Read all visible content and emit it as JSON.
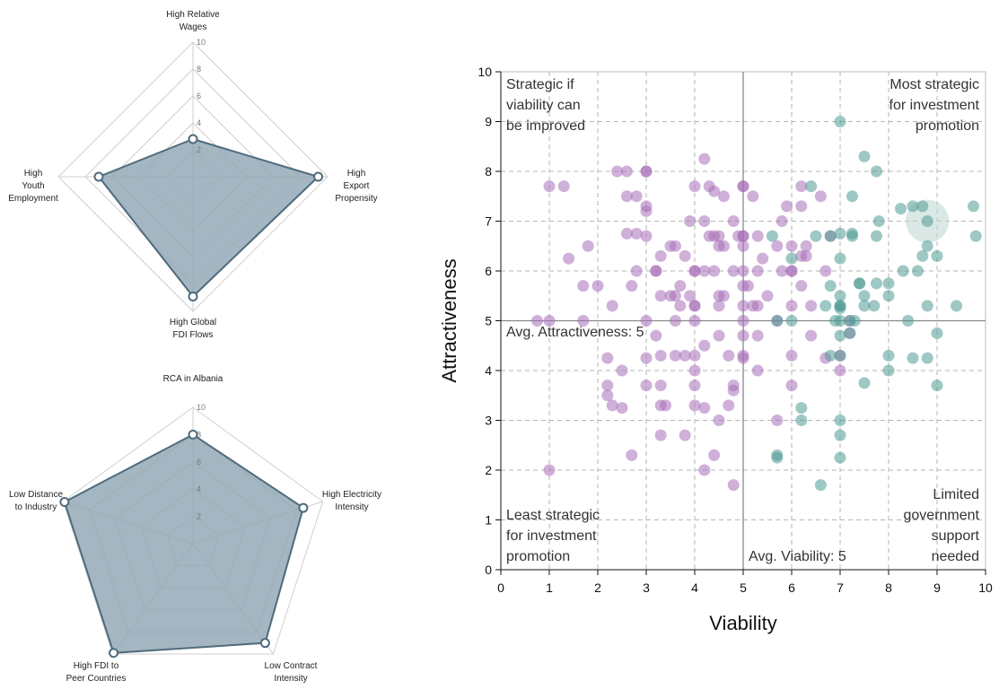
{
  "chart_data": [
    {
      "type": "radar",
      "title": "",
      "axes": [
        "High Relative Wages",
        "High Export Propensity",
        "High Global FDI Flows",
        "High Youth Employment"
      ],
      "axis_label_lines": [
        [
          "High Relative",
          "Wages"
        ],
        [
          "High",
          "Export",
          "Propensity"
        ],
        [
          "High Global",
          "FDI Flows"
        ],
        [
          "High",
          "Youth",
          "Employment"
        ]
      ],
      "values": [
        2.8,
        9.3,
        8.9,
        7.0
      ],
      "range": [
        0,
        10
      ],
      "ticks": [
        2,
        4,
        6,
        8,
        10
      ],
      "fill_color": "#8fa6b3",
      "line_color": "#4f6b7c"
    },
    {
      "type": "radar",
      "title": "RCA in Albania",
      "axes": [
        "RCA in Albania",
        "High Electricity Intensity",
        "Low Contract Intensity",
        "High FDI to Peer Countries",
        "Low Distance to Industry"
      ],
      "axis_label_lines": [
        [],
        [
          "High Electricity",
          "Intensity"
        ],
        [
          "Low Contract",
          "Intensity"
        ],
        [
          "High FDI to",
          "Peer Countries"
        ],
        [
          "Low Distance",
          "to Industry"
        ]
      ],
      "values": [
        8.0,
        8.5,
        9.0,
        9.9,
        9.9
      ],
      "range": [
        0,
        10
      ],
      "ticks": [
        2,
        4,
        6,
        8,
        10
      ],
      "fill_color": "#8fa6b3",
      "line_color": "#4f6b7c"
    },
    {
      "type": "scatter",
      "xlabel": "Viability",
      "ylabel": "Attractiveness",
      "xlim": [
        0,
        10
      ],
      "ylim": [
        0,
        10
      ],
      "xticks": [
        0,
        1,
        2,
        3,
        4,
        5,
        6,
        7,
        8,
        9,
        10
      ],
      "yticks": [
        0,
        1,
        2,
        3,
        4,
        5,
        6,
        7,
        8,
        9,
        10
      ],
      "grid": true,
      "avg_x": 5,
      "avg_y": 5,
      "avg_x_label": "Avg. Viability: 5",
      "avg_y_label": "Avg. Attractiveness: 5",
      "quadrant_labels": {
        "top_left": [
          "Strategic if",
          "viability can",
          "be improved"
        ],
        "top_right": [
          "Most strategic",
          "for investment",
          "promotion"
        ],
        "bottom_left": [
          "Least strategic",
          "for investment",
          "promotion"
        ],
        "bottom_right": [
          "Limited",
          "government",
          "support",
          "needed"
        ]
      },
      "highlight": {
        "x": 8.8,
        "y": 7.0
      },
      "colors": {
        "purple": "#a870b8",
        "teal": "#4f9a92",
        "highlight": "#bcd6d2"
      },
      "series": [
        {
          "color_key": "purple",
          "points": [
            [
              0.75,
              5.0
            ],
            [
              1.0,
              5.0
            ],
            [
              1.0,
              7.7
            ],
            [
              1.3,
              7.7
            ],
            [
              1.0,
              2.0
            ],
            [
              1.4,
              6.25
            ],
            [
              1.7,
              5.0
            ],
            [
              1.7,
              5.7
            ],
            [
              1.8,
              6.5
            ],
            [
              2.0,
              5.7
            ],
            [
              2.2,
              4.25
            ],
            [
              2.2,
              3.7
            ],
            [
              2.2,
              3.5
            ],
            [
              2.3,
              5.3
            ],
            [
              2.3,
              3.3
            ],
            [
              2.4,
              8.0
            ],
            [
              2.5,
              4.0
            ],
            [
              2.5,
              3.25
            ],
            [
              2.6,
              8.0
            ],
            [
              2.6,
              7.5
            ],
            [
              2.6,
              6.75
            ],
            [
              2.7,
              5.7
            ],
            [
              2.7,
              2.3
            ],
            [
              2.8,
              7.5
            ],
            [
              2.8,
              6.75
            ],
            [
              2.8,
              6.0
            ],
            [
              3.0,
              8.0
            ],
            [
              3.0,
              8.0
            ],
            [
              3.0,
              7.3
            ],
            [
              3.0,
              7.2
            ],
            [
              3.0,
              6.7
            ],
            [
              3.0,
              5.0
            ],
            [
              3.0,
              4.25
            ],
            [
              3.0,
              3.7
            ],
            [
              3.2,
              6.0
            ],
            [
              3.2,
              6.0
            ],
            [
              3.2,
              4.7
            ],
            [
              3.3,
              6.3
            ],
            [
              3.3,
              5.5
            ],
            [
              3.3,
              4.3
            ],
            [
              3.3,
              3.7
            ],
            [
              3.3,
              3.3
            ],
            [
              3.3,
              2.7
            ],
            [
              3.4,
              3.3
            ],
            [
              3.5,
              6.5
            ],
            [
              3.5,
              5.5
            ],
            [
              3.6,
              6.5
            ],
            [
              3.6,
              5.5
            ],
            [
              3.6,
              5.0
            ],
            [
              3.6,
              4.3
            ],
            [
              3.7,
              5.7
            ],
            [
              3.7,
              5.3
            ],
            [
              3.8,
              6.3
            ],
            [
              3.8,
              4.3
            ],
            [
              3.8,
              2.7
            ],
            [
              3.9,
              7.0
            ],
            [
              3.9,
              5.5
            ],
            [
              4.0,
              7.7
            ],
            [
              4.0,
              6.0
            ],
            [
              4.0,
              6.0
            ],
            [
              4.0,
              5.3
            ],
            [
              4.0,
              5.3
            ],
            [
              4.0,
              5.0
            ],
            [
              4.0,
              4.3
            ],
            [
              4.0,
              4.0
            ],
            [
              4.0,
              3.7
            ],
            [
              4.0,
              3.3
            ],
            [
              4.2,
              8.25
            ],
            [
              4.2,
              7.0
            ],
            [
              4.2,
              6.0
            ],
            [
              4.2,
              4.5
            ],
            [
              4.2,
              3.25
            ],
            [
              4.2,
              2.0
            ],
            [
              4.3,
              7.7
            ],
            [
              4.3,
              6.7
            ],
            [
              4.4,
              7.6
            ],
            [
              4.4,
              6.7
            ],
            [
              4.4,
              6.0
            ],
            [
              4.4,
              2.3
            ],
            [
              4.5,
              6.7
            ],
            [
              4.5,
              6.5
            ],
            [
              4.5,
              5.5
            ],
            [
              4.5,
              5.3
            ],
            [
              4.5,
              4.7
            ],
            [
              4.5,
              3.0
            ],
            [
              4.6,
              7.5
            ],
            [
              4.6,
              6.5
            ],
            [
              4.6,
              5.5
            ],
            [
              4.7,
              4.3
            ],
            [
              4.7,
              3.3
            ],
            [
              4.8,
              7.0
            ],
            [
              4.8,
              6.0
            ],
            [
              4.8,
              3.7
            ],
            [
              4.8,
              3.6
            ],
            [
              4.8,
              1.7
            ],
            [
              4.9,
              6.7
            ],
            [
              5.0,
              7.7
            ],
            [
              5.0,
              7.7
            ],
            [
              5.0,
              6.7
            ],
            [
              5.0,
              6.7
            ],
            [
              5.0,
              6.5
            ],
            [
              5.0,
              6.0
            ],
            [
              5.0,
              5.7
            ],
            [
              5.0,
              5.3
            ],
            [
              5.0,
              5.0
            ],
            [
              5.0,
              4.7
            ],
            [
              5.0,
              4.3
            ],
            [
              5.0,
              4.25
            ],
            [
              5.1,
              5.7
            ],
            [
              5.2,
              7.5
            ],
            [
              5.2,
              5.3
            ],
            [
              5.3,
              6.7
            ],
            [
              5.3,
              6.0
            ],
            [
              5.3,
              5.3
            ],
            [
              5.3,
              4.7
            ],
            [
              5.3,
              4.0
            ],
            [
              5.4,
              6.25
            ],
            [
              5.5,
              5.5
            ],
            [
              5.7,
              6.5
            ],
            [
              5.7,
              5.0
            ],
            [
              5.7,
              3.0
            ],
            [
              5.8,
              7.0
            ],
            [
              5.8,
              6.0
            ],
            [
              5.9,
              7.3
            ],
            [
              6.0,
              6.5
            ],
            [
              6.0,
              6.0
            ],
            [
              6.0,
              6.0
            ],
            [
              6.0,
              5.3
            ],
            [
              6.0,
              4.3
            ],
            [
              6.0,
              3.7
            ],
            [
              6.2,
              7.7
            ],
            [
              6.2,
              7.3
            ],
            [
              6.2,
              6.3
            ],
            [
              6.2,
              5.7
            ],
            [
              6.3,
              6.5
            ],
            [
              6.3,
              6.3
            ],
            [
              6.4,
              5.3
            ],
            [
              6.4,
              4.7
            ],
            [
              6.6,
              7.5
            ],
            [
              6.7,
              6.0
            ],
            [
              6.7,
              4.25
            ],
            [
              6.8,
              6.7
            ],
            [
              7.0,
              4.3
            ],
            [
              7.0,
              4.0
            ],
            [
              7.2,
              5.0
            ],
            [
              7.2,
              4.75
            ]
          ]
        },
        {
          "color_key": "teal",
          "points": [
            [
              5.6,
              6.7
            ],
            [
              5.7,
              5.0
            ],
            [
              5.7,
              2.3
            ],
            [
              5.7,
              2.25
            ],
            [
              6.0,
              6.25
            ],
            [
              6.0,
              5.0
            ],
            [
              6.2,
              3.25
            ],
            [
              6.2,
              3.0
            ],
            [
              6.4,
              7.7
            ],
            [
              6.5,
              6.7
            ],
            [
              6.6,
              1.7
            ],
            [
              6.7,
              5.3
            ],
            [
              6.8,
              6.7
            ],
            [
              6.8,
              5.7
            ],
            [
              6.8,
              4.3
            ],
            [
              6.9,
              5.0
            ],
            [
              7.0,
              9.0
            ],
            [
              7.0,
              6.75
            ],
            [
              7.0,
              6.25
            ],
            [
              7.0,
              5.5
            ],
            [
              7.0,
              5.3
            ],
            [
              7.0,
              5.3
            ],
            [
              7.0,
              5.25
            ],
            [
              7.0,
              5.0
            ],
            [
              7.0,
              4.7
            ],
            [
              7.0,
              4.3
            ],
            [
              7.0,
              3.0
            ],
            [
              7.0,
              2.7
            ],
            [
              7.0,
              2.25
            ],
            [
              7.2,
              5.0
            ],
            [
              7.2,
              4.75
            ],
            [
              7.25,
              7.5
            ],
            [
              7.25,
              6.75
            ],
            [
              7.25,
              6.7
            ],
            [
              7.3,
              5.0
            ],
            [
              7.4,
              5.75
            ],
            [
              7.4,
              5.75
            ],
            [
              7.5,
              8.3
            ],
            [
              7.5,
              5.5
            ],
            [
              7.5,
              5.3
            ],
            [
              7.5,
              3.75
            ],
            [
              7.7,
              5.3
            ],
            [
              7.75,
              8.0
            ],
            [
              7.75,
              6.7
            ],
            [
              7.75,
              5.75
            ],
            [
              7.8,
              7.0
            ],
            [
              8.0,
              5.75
            ],
            [
              8.0,
              5.5
            ],
            [
              8.0,
              4.3
            ],
            [
              8.0,
              4.0
            ],
            [
              8.25,
              7.25
            ],
            [
              8.3,
              6.0
            ],
            [
              8.4,
              5.0
            ],
            [
              8.5,
              7.3
            ],
            [
              8.5,
              4.25
            ],
            [
              8.6,
              6.0
            ],
            [
              8.7,
              7.3
            ],
            [
              8.7,
              6.3
            ],
            [
              8.8,
              7.0
            ],
            [
              8.8,
              6.5
            ],
            [
              8.8,
              5.3
            ],
            [
              8.8,
              4.25
            ],
            [
              9.0,
              6.3
            ],
            [
              9.0,
              4.75
            ],
            [
              9.0,
              3.7
            ],
            [
              9.4,
              5.3
            ],
            [
              9.75,
              7.3
            ],
            [
              9.8,
              6.7
            ]
          ]
        }
      ]
    }
  ]
}
